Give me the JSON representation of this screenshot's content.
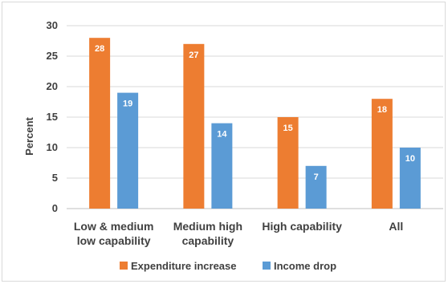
{
  "chart_data": {
    "type": "bar",
    "title": "",
    "xlabel": "",
    "ylabel": "Percent",
    "ylim": [
      0,
      30
    ],
    "yticks": [
      0,
      5,
      10,
      15,
      20,
      25,
      30
    ],
    "grid": true,
    "legend_position": "bottom",
    "categories": [
      [
        "Low & medium",
        "low capability"
      ],
      [
        "Medium high",
        "capability"
      ],
      [
        "High capability"
      ],
      [
        "All"
      ]
    ],
    "series": [
      {
        "name": "Expenditure increase",
        "color": "#ED7D31",
        "values": [
          28,
          27,
          15,
          18
        ]
      },
      {
        "name": "Income drop",
        "color": "#5B9BD5",
        "values": [
          19,
          14,
          7,
          10
        ]
      }
    ]
  }
}
